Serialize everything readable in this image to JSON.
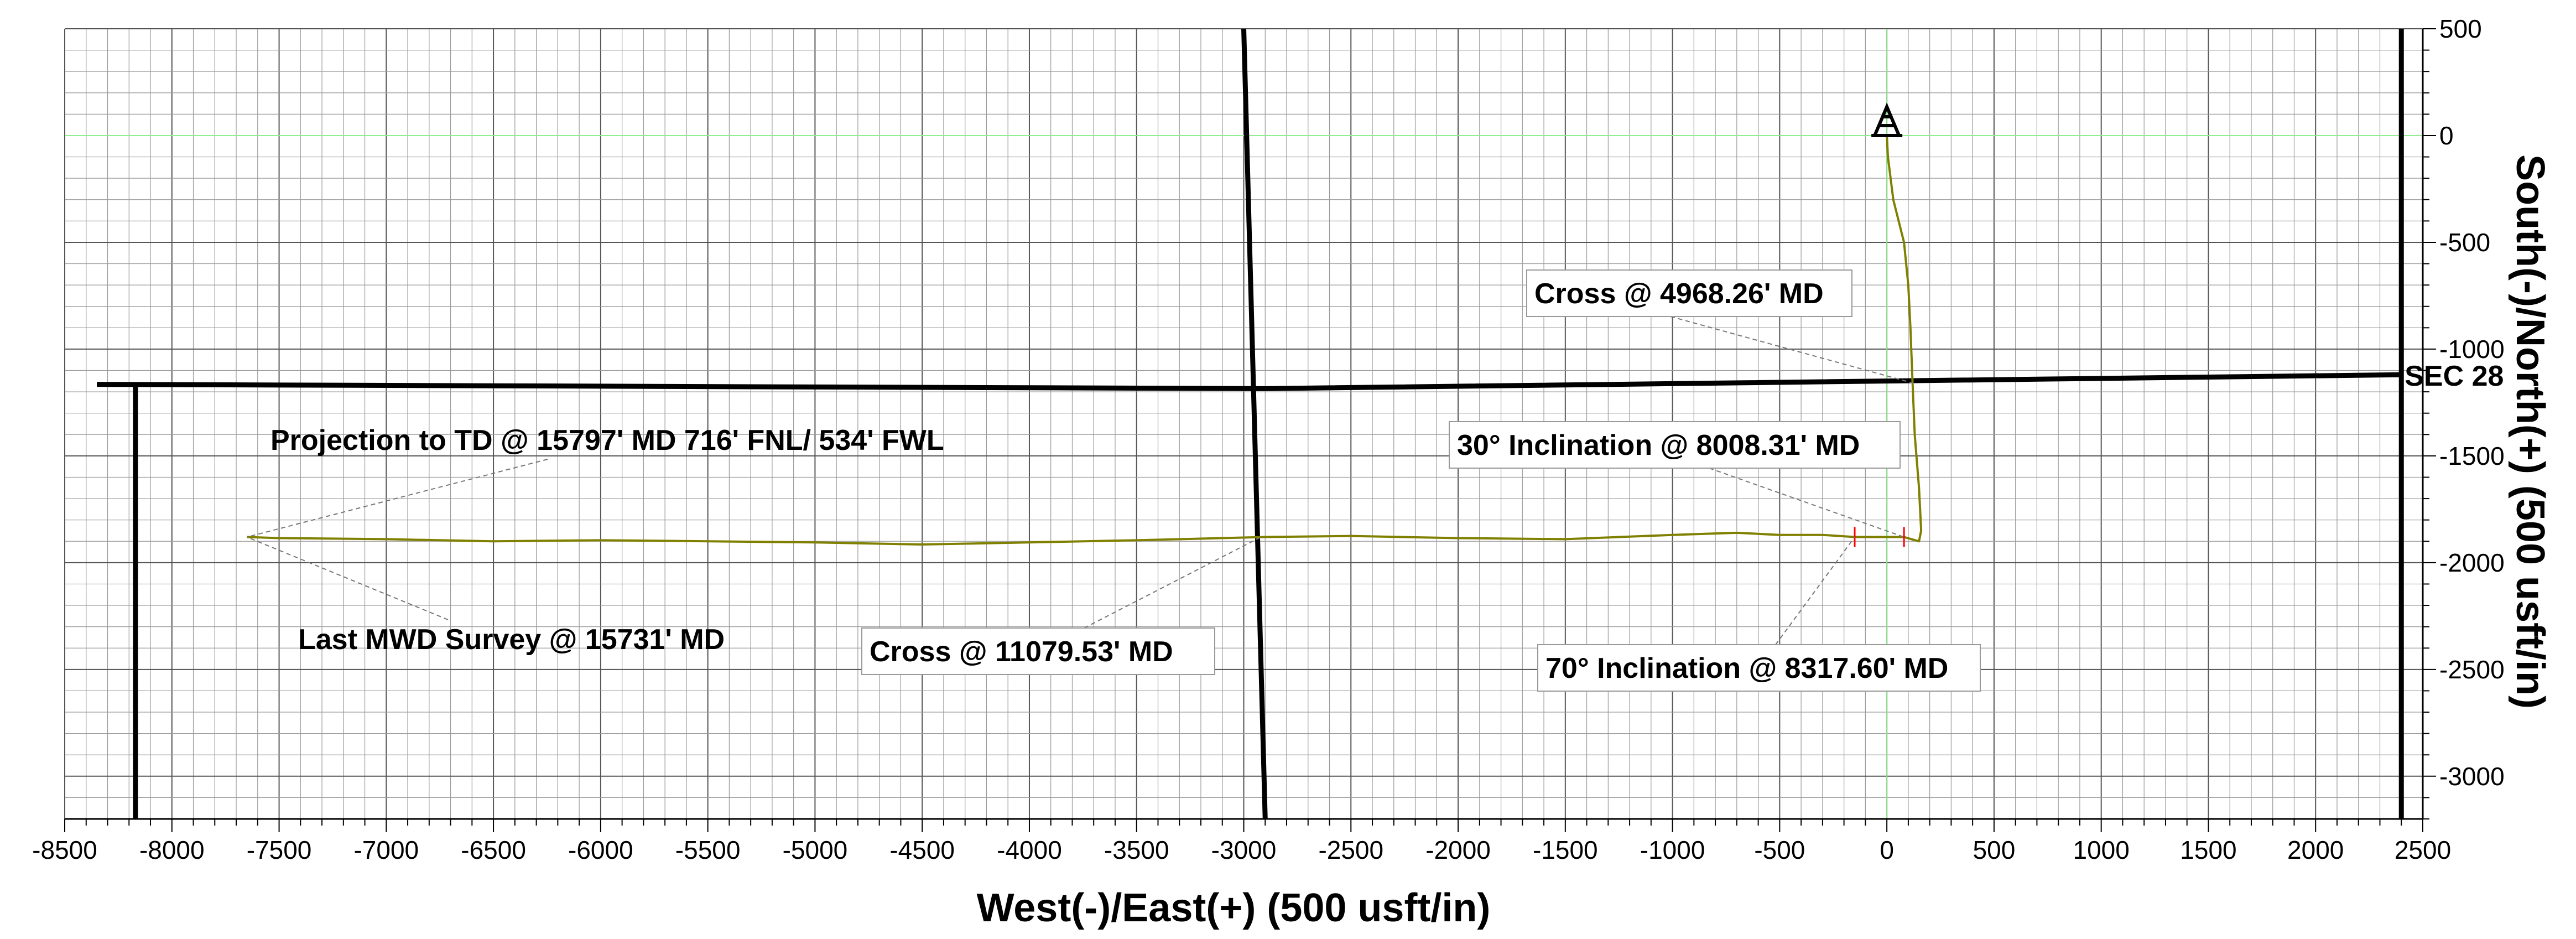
{
  "chart_data": {
    "type": "line",
    "title": "",
    "xlabel": "West(-)/East(+) (500 usft/in)",
    "ylabel": "South(-)/North(+) (500 usft/in)",
    "xlim": [
      -8500,
      2500
    ],
    "ylim": [
      -3200,
      500
    ],
    "xticks": [
      -8500,
      -8000,
      -7500,
      -7000,
      -6500,
      -6000,
      -5500,
      -5000,
      -4500,
      -4000,
      -3500,
      -3000,
      -2500,
      -2000,
      -1500,
      -1000,
      -500,
      0,
      500,
      1000,
      1500,
      2000,
      2500
    ],
    "yticks": [
      500,
      0,
      -500,
      -1000,
      -1500,
      -2000,
      -2500,
      -3000
    ],
    "xtick_labels": [
      "-8500",
      "-8000",
      "-7500",
      "-7000",
      "-6500",
      "-6000",
      "-5500",
      "-5000",
      "-4500",
      "-4000",
      "-3500",
      "-3000",
      "-2500",
      "-2000",
      "-1500",
      "-1000",
      "-500",
      "0",
      "500",
      "1000",
      "1500",
      "2000",
      "2500"
    ],
    "ytick_labels": [
      "500",
      "0",
      "-500",
      "-1000",
      "-1500",
      "-2000",
      "-2500",
      "-3000"
    ],
    "grid": true,
    "wellbore": {
      "color": "#808000",
      "points": [
        [
          0,
          0
        ],
        [
          5,
          -100
        ],
        [
          30,
          -300
        ],
        [
          80,
          -500
        ],
        [
          100,
          -700
        ],
        [
          110,
          -900
        ],
        [
          120,
          -1160
        ],
        [
          130,
          -1400
        ],
        [
          150,
          -1650
        ],
        [
          160,
          -1850
        ],
        [
          150,
          -1900
        ],
        [
          80,
          -1880
        ],
        [
          -150,
          -1880
        ],
        [
          -300,
          -1870
        ],
        [
          -500,
          -1870
        ],
        [
          -700,
          -1860
        ],
        [
          -1000,
          -1870
        ],
        [
          -1500,
          -1890
        ],
        [
          -2000,
          -1885
        ],
        [
          -2500,
          -1875
        ],
        [
          -2900,
          -1880
        ],
        [
          -3500,
          -1895
        ],
        [
          -4000,
          -1905
        ],
        [
          -4500,
          -1915
        ],
        [
          -5000,
          -1905
        ],
        [
          -5500,
          -1900
        ],
        [
          -6000,
          -1895
        ],
        [
          -6500,
          -1900
        ],
        [
          -7000,
          -1890
        ],
        [
          -7500,
          -1885
        ],
        [
          -7650,
          -1880
        ]
      ]
    },
    "inclination_marks": [
      {
        "x": 80,
        "y": -1880,
        "color": "#ff0000"
      },
      {
        "x": -150,
        "y": -1880,
        "color": "#ff0000"
      }
    ],
    "section_lines": [
      {
        "points": [
          [
            -8350,
            -1165
          ],
          [
            -2900,
            -1185
          ],
          [
            2400,
            -1120
          ]
        ]
      },
      {
        "points": [
          [
            -3000,
            500
          ],
          [
            -2900,
            -3200
          ]
        ]
      },
      {
        "points": [
          [
            2400,
            500
          ],
          [
            2400,
            -3200
          ]
        ]
      },
      {
        "points": [
          [
            -8170,
            -1165
          ],
          [
            -8170,
            -3200
          ]
        ]
      }
    ],
    "section_label": {
      "text": "SEC 28",
      "x": 2400,
      "y": -1125
    },
    "reference_lines": {
      "x": 0,
      "y": 0,
      "color": "#90ee90"
    },
    "rig_symbol": {
      "x": 0,
      "y": 0,
      "icon": "rig-symbol-icon"
    },
    "annotations": [
      {
        "text": "Cross @ 4968.26' MD",
        "target": [
          125,
          -1160
        ],
        "boxed": true
      },
      {
        "text": "30° Inclination @ 8008.31' MD",
        "target": [
          80,
          -1880
        ],
        "boxed": true
      },
      {
        "text": "70° Inclination @ 8317.60' MD",
        "target": [
          -150,
          -1880
        ],
        "boxed": true
      },
      {
        "text": "Projection to TD @ 15797' MD 716' FNL/ 534' FWL",
        "target": [
          -7650,
          -1880
        ],
        "boxed": false
      },
      {
        "text": "Last MWD Survey @ 15731' MD",
        "target": [
          -7650,
          -1880
        ],
        "boxed": false
      },
      {
        "text": "Cross @ 11079.53' MD",
        "target": [
          -2920,
          -1880
        ],
        "boxed": true
      }
    ]
  }
}
